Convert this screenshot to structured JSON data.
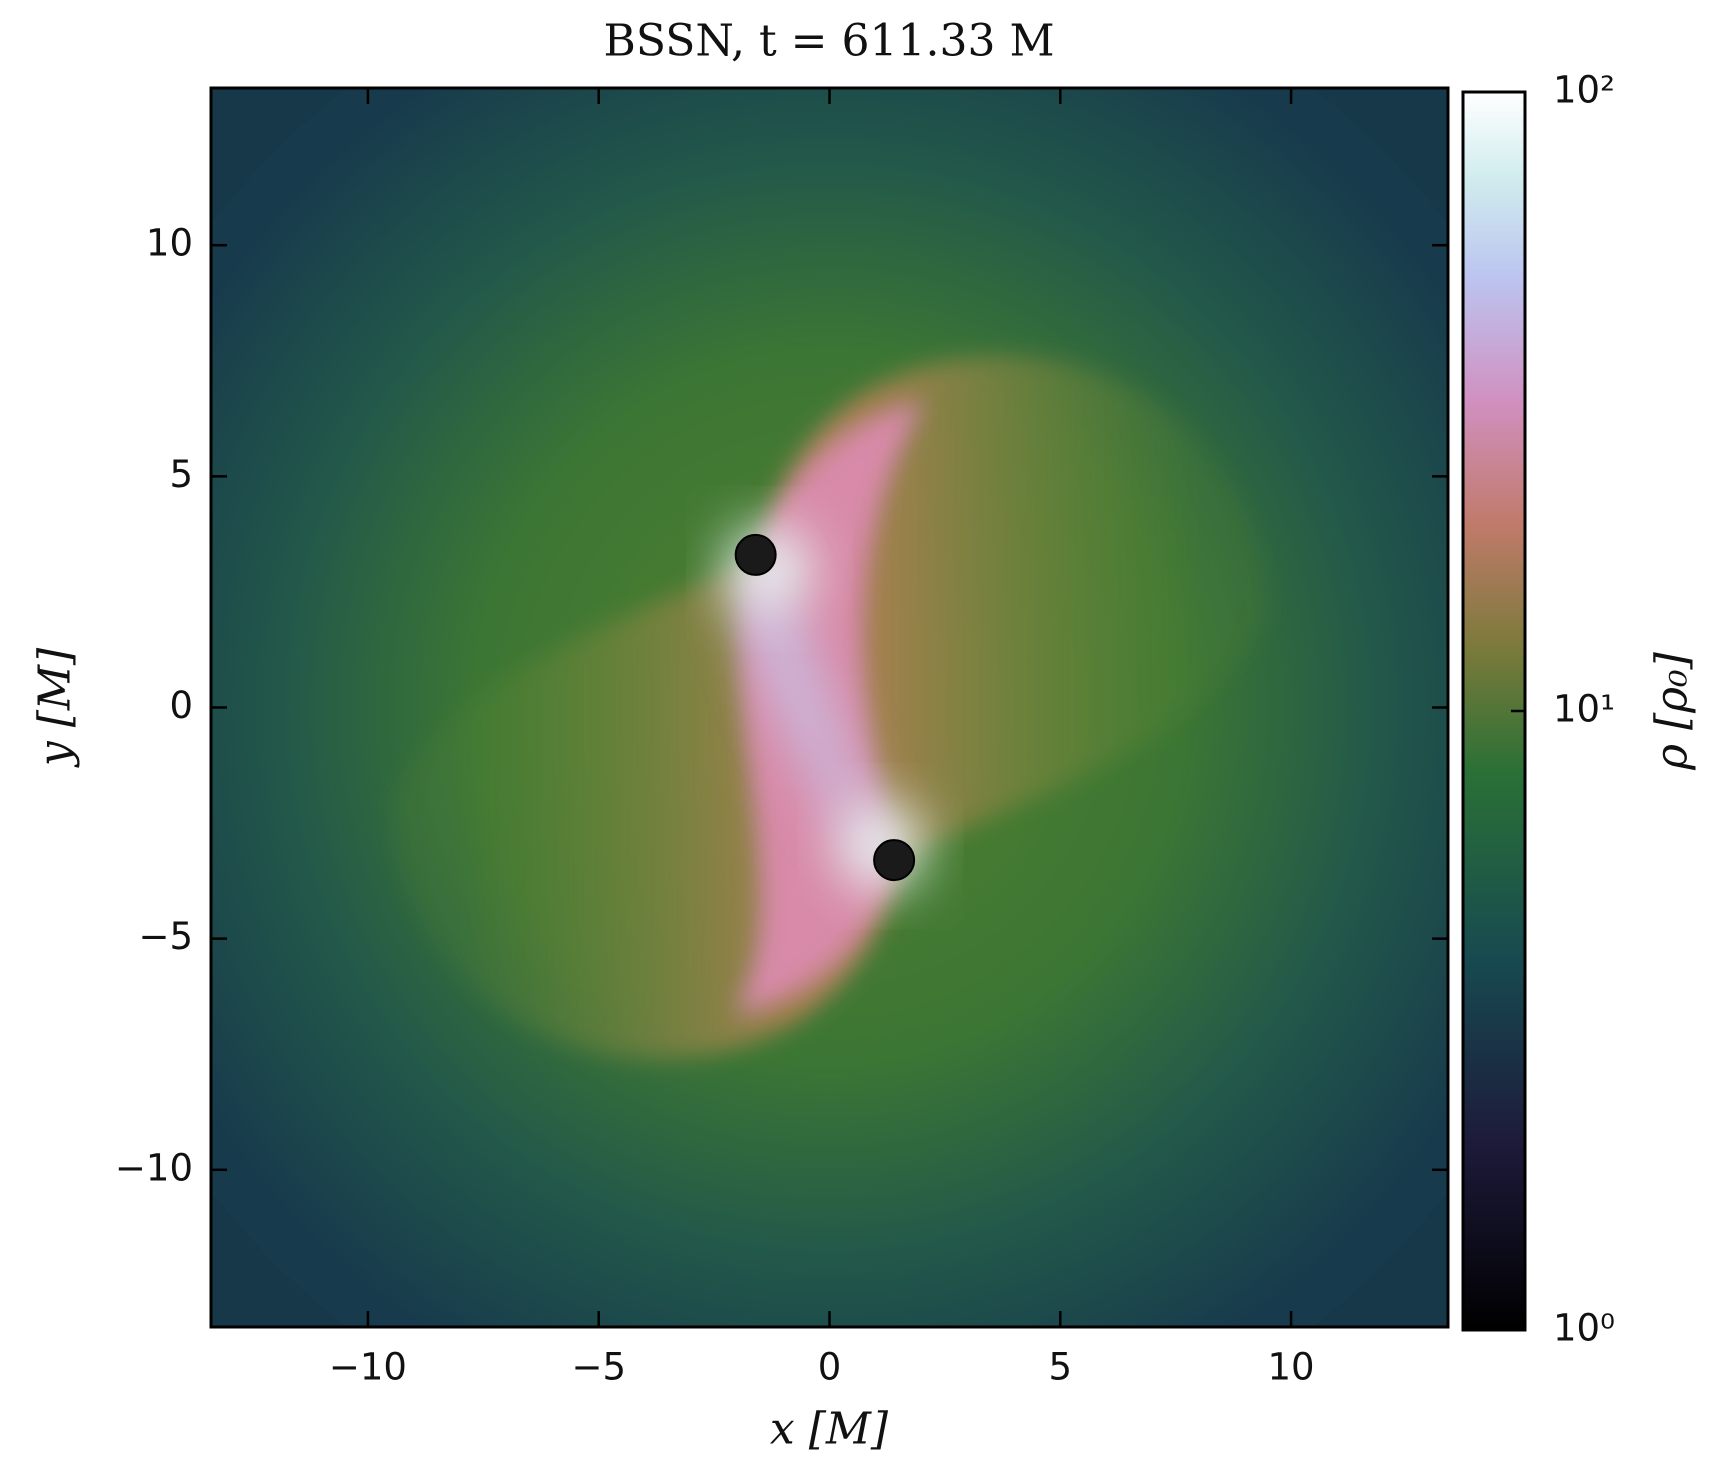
{
  "chart_data": {
    "type": "scatter",
    "title": "BSSN, t = 611.33 M",
    "x_label": "x [M]",
    "y_label": "y [M]",
    "xlim": [
      -13.4,
      13.4
    ],
    "ylim": [
      -13.4,
      13.4
    ],
    "xticks": [
      {
        "value": -10,
        "label": "−10"
      },
      {
        "value": -5,
        "label": "−5"
      },
      0,
      5,
      10
    ],
    "yticks": [
      {
        "value": -10,
        "label": "−10"
      },
      {
        "value": -5,
        "label": "−5"
      },
      0,
      5,
      10
    ],
    "series": [
      {
        "x": [
          -1.6,
          1.4
        ],
        "values": [
          3.3,
          -3.3
        ],
        "color": "#1a1a1a"
      }
    ],
    "colorbar": {
      "label": "ρ [ρ₀]",
      "scale": "log",
      "clim": [
        1,
        100
      ],
      "ticks": [
        {
          "value": 1,
          "label": "10⁰"
        },
        {
          "value": 10,
          "label": "10¹"
        },
        {
          "value": 100,
          "label": "10²"
        }
      ]
    }
  }
}
